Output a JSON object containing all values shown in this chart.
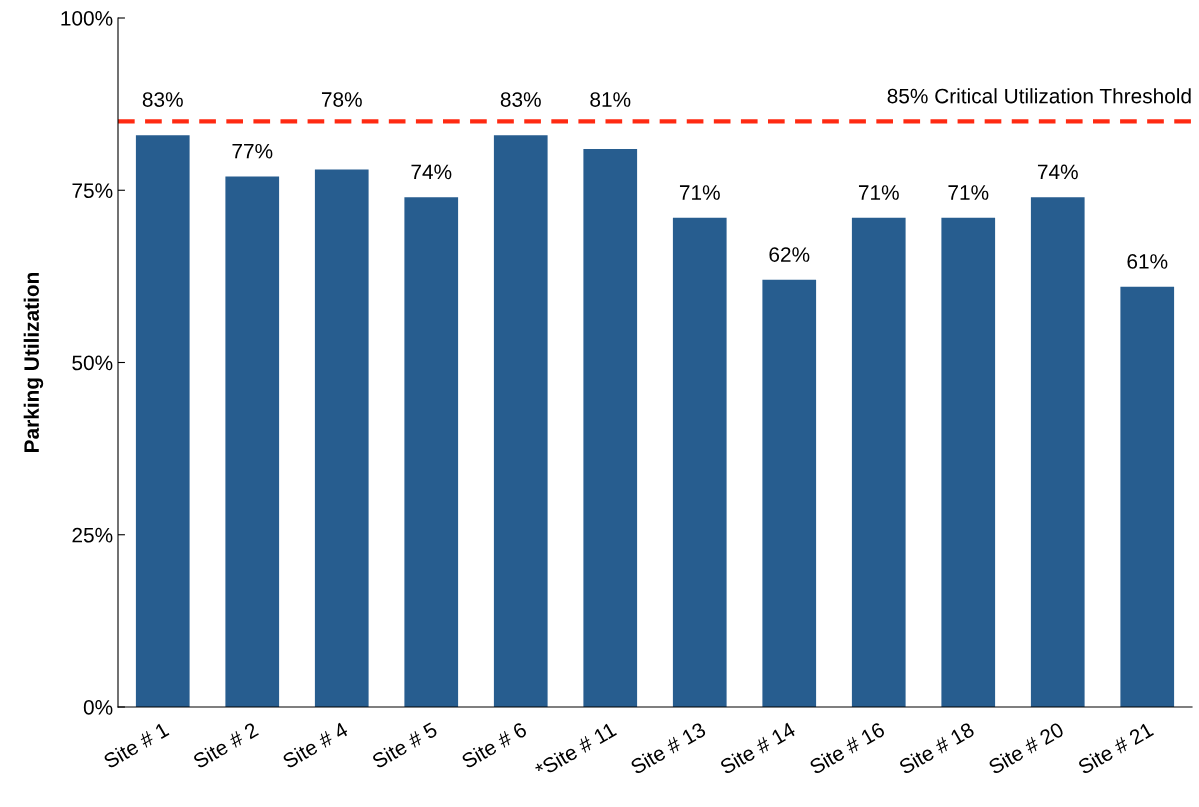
{
  "chart_data": {
    "type": "bar",
    "ylabel": "Parking Utilization",
    "categories": [
      "Site # 1",
      "Site # 2",
      "Site # 4",
      "Site # 5",
      "Site # 6",
      "*Site # 11",
      "Site # 13",
      "Site # 14",
      "Site # 16",
      "Site # 18",
      "Site # 20",
      "Site # 21"
    ],
    "values": [
      83,
      77,
      78,
      74,
      83,
      81,
      71,
      62,
      71,
      71,
      74,
      61
    ],
    "value_labels": [
      "83%",
      "77%",
      "78%",
      "74%",
      "83%",
      "81%",
      "71%",
      "62%",
      "71%",
      "71%",
      "74%",
      "61%"
    ],
    "color": "#275d8f",
    "ylim": [
      0,
      100
    ],
    "yticks": [
      {
        "value": 0,
        "label": "0%"
      },
      {
        "value": 25,
        "label": "25%"
      },
      {
        "value": 50,
        "label": "50%"
      },
      {
        "value": 75,
        "label": "75%"
      },
      {
        "value": 100,
        "label": "100%"
      }
    ],
    "ref_lines": [
      {
        "axis": "y",
        "value": 85,
        "label": "85% Critical Utilization Threshold",
        "color": "#ff2a12",
        "line_style": "dashed"
      }
    ],
    "grid": false,
    "legend": false
  }
}
